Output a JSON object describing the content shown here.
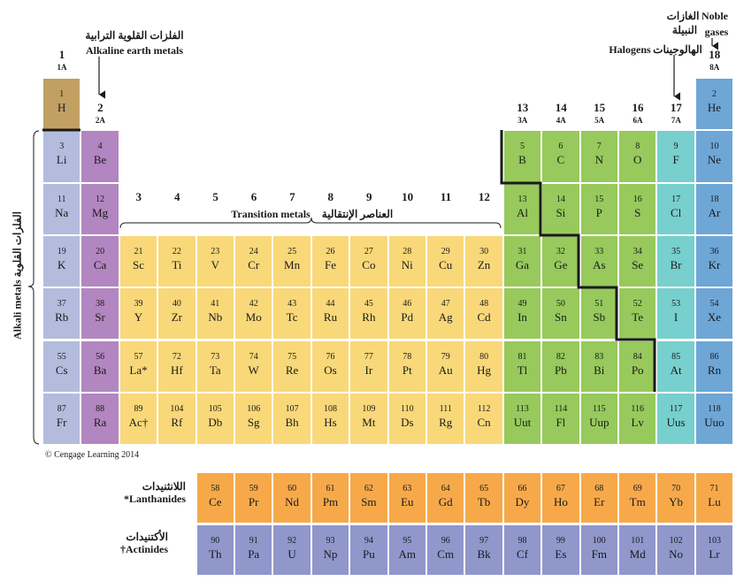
{
  "header": {
    "alkaline_earth_ar": "الفلزات القلوية الترابية",
    "alkaline_earth_en": "Alkaline earth metals",
    "noble_en_1": "Noble",
    "noble_en_2": "gases",
    "noble_ar_1": "الغازات",
    "noble_ar_2": "النبيلة",
    "halogens_en": "Halogens",
    "halogens_ar": "الهالوجينات",
    "transition_en": "Transition metals",
    "transition_ar": "العناصر الإنتقالية",
    "alkali_en": "Alkali metals",
    "alkali_ar": "الفلزات القلوية",
    "lanthanides_ar": "اللانثنيدات",
    "lanthanides_en": "*Lanthanides",
    "actinides_ar": "الأكتنيدات",
    "actinides_en": "†Actinides",
    "copyright": "© Cengage Learning 2014"
  },
  "groups": [
    {
      "col": 1,
      "num": "1",
      "sub": "1A"
    },
    {
      "col": 2,
      "num": "2",
      "sub": "2A"
    },
    {
      "col": 13,
      "num": "13",
      "sub": "3A"
    },
    {
      "col": 14,
      "num": "14",
      "sub": "4A"
    },
    {
      "col": 15,
      "num": "15",
      "sub": "5A"
    },
    {
      "col": 16,
      "num": "16",
      "sub": "6A"
    },
    {
      "col": 17,
      "num": "17",
      "sub": "7A"
    },
    {
      "col": 18,
      "num": "18",
      "sub": "8A"
    }
  ],
  "transition_groups": [
    "3",
    "4",
    "5",
    "6",
    "7",
    "8",
    "9",
    "10",
    "11",
    "12"
  ],
  "colors": {
    "hydrogen": "#c2a063",
    "alkali": "#b3bcdc",
    "alkaline": "#b286c0",
    "transition": "#f9d879",
    "metalloid": "#97c95c",
    "halogen": "#77cfce",
    "noble": "#6ea6d6",
    "lanthanide": "#f7a94a",
    "actinide": "#8f97cb"
  },
  "elements": [
    {
      "n": "1",
      "s": "H",
      "row": 1,
      "col": 1,
      "cat": "hydrogen"
    },
    {
      "n": "2",
      "s": "He",
      "row": 1,
      "col": 18,
      "cat": "noble"
    },
    {
      "n": "3",
      "s": "Li",
      "row": 2,
      "col": 1,
      "cat": "alkali"
    },
    {
      "n": "4",
      "s": "Be",
      "row": 2,
      "col": 2,
      "cat": "alkaline"
    },
    {
      "n": "5",
      "s": "B",
      "row": 2,
      "col": 13,
      "cat": "metalloid"
    },
    {
      "n": "6",
      "s": "C",
      "row": 2,
      "col": 14,
      "cat": "metalloid"
    },
    {
      "n": "7",
      "s": "N",
      "row": 2,
      "col": 15,
      "cat": "metalloid"
    },
    {
      "n": "8",
      "s": "O",
      "row": 2,
      "col": 16,
      "cat": "metalloid"
    },
    {
      "n": "9",
      "s": "F",
      "row": 2,
      "col": 17,
      "cat": "halogen"
    },
    {
      "n": "10",
      "s": "Ne",
      "row": 2,
      "col": 18,
      "cat": "noble"
    },
    {
      "n": "11",
      "s": "Na",
      "row": 3,
      "col": 1,
      "cat": "alkali"
    },
    {
      "n": "12",
      "s": "Mg",
      "row": 3,
      "col": 2,
      "cat": "alkaline"
    },
    {
      "n": "13",
      "s": "Al",
      "row": 3,
      "col": 13,
      "cat": "metalloid"
    },
    {
      "n": "14",
      "s": "Si",
      "row": 3,
      "col": 14,
      "cat": "metalloid"
    },
    {
      "n": "15",
      "s": "P",
      "row": 3,
      "col": 15,
      "cat": "metalloid"
    },
    {
      "n": "16",
      "s": "S",
      "row": 3,
      "col": 16,
      "cat": "metalloid"
    },
    {
      "n": "17",
      "s": "Cl",
      "row": 3,
      "col": 17,
      "cat": "halogen"
    },
    {
      "n": "18",
      "s": "Ar",
      "row": 3,
      "col": 18,
      "cat": "noble"
    },
    {
      "n": "19",
      "s": "K",
      "row": 4,
      "col": 1,
      "cat": "alkali"
    },
    {
      "n": "20",
      "s": "Ca",
      "row": 4,
      "col": 2,
      "cat": "alkaline"
    },
    {
      "n": "21",
      "s": "Sc",
      "row": 4,
      "col": 3,
      "cat": "transition"
    },
    {
      "n": "22",
      "s": "Ti",
      "row": 4,
      "col": 4,
      "cat": "transition"
    },
    {
      "n": "23",
      "s": "V",
      "row": 4,
      "col": 5,
      "cat": "transition"
    },
    {
      "n": "24",
      "s": "Cr",
      "row": 4,
      "col": 6,
      "cat": "transition"
    },
    {
      "n": "25",
      "s": "Mn",
      "row": 4,
      "col": 7,
      "cat": "transition"
    },
    {
      "n": "26",
      "s": "Fe",
      "row": 4,
      "col": 8,
      "cat": "transition"
    },
    {
      "n": "27",
      "s": "Co",
      "row": 4,
      "col": 9,
      "cat": "transition"
    },
    {
      "n": "28",
      "s": "Ni",
      "row": 4,
      "col": 10,
      "cat": "transition"
    },
    {
      "n": "29",
      "s": "Cu",
      "row": 4,
      "col": 11,
      "cat": "transition"
    },
    {
      "n": "30",
      "s": "Zn",
      "row": 4,
      "col": 12,
      "cat": "transition"
    },
    {
      "n": "31",
      "s": "Ga",
      "row": 4,
      "col": 13,
      "cat": "metalloid"
    },
    {
      "n": "32",
      "s": "Ge",
      "row": 4,
      "col": 14,
      "cat": "metalloid"
    },
    {
      "n": "33",
      "s": "As",
      "row": 4,
      "col": 15,
      "cat": "metalloid"
    },
    {
      "n": "34",
      "s": "Se",
      "row": 4,
      "col": 16,
      "cat": "metalloid"
    },
    {
      "n": "35",
      "s": "Br",
      "row": 4,
      "col": 17,
      "cat": "halogen"
    },
    {
      "n": "36",
      "s": "Kr",
      "row": 4,
      "col": 18,
      "cat": "noble"
    },
    {
      "n": "37",
      "s": "Rb",
      "row": 5,
      "col": 1,
      "cat": "alkali"
    },
    {
      "n": "38",
      "s": "Sr",
      "row": 5,
      "col": 2,
      "cat": "alkaline"
    },
    {
      "n": "39",
      "s": "Y",
      "row": 5,
      "col": 3,
      "cat": "transition"
    },
    {
      "n": "40",
      "s": "Zr",
      "row": 5,
      "col": 4,
      "cat": "transition"
    },
    {
      "n": "41",
      "s": "Nb",
      "row": 5,
      "col": 5,
      "cat": "transition"
    },
    {
      "n": "42",
      "s": "Mo",
      "row": 5,
      "col": 6,
      "cat": "transition"
    },
    {
      "n": "43",
      "s": "Tc",
      "row": 5,
      "col": 7,
      "cat": "transition"
    },
    {
      "n": "44",
      "s": "Ru",
      "row": 5,
      "col": 8,
      "cat": "transition"
    },
    {
      "n": "45",
      "s": "Rh",
      "row": 5,
      "col": 9,
      "cat": "transition"
    },
    {
      "n": "46",
      "s": "Pd",
      "row": 5,
      "col": 10,
      "cat": "transition"
    },
    {
      "n": "47",
      "s": "Ag",
      "row": 5,
      "col": 11,
      "cat": "transition"
    },
    {
      "n": "48",
      "s": "Cd",
      "row": 5,
      "col": 12,
      "cat": "transition"
    },
    {
      "n": "49",
      "s": "In",
      "row": 5,
      "col": 13,
      "cat": "metalloid"
    },
    {
      "n": "50",
      "s": "Sn",
      "row": 5,
      "col": 14,
      "cat": "metalloid"
    },
    {
      "n": "51",
      "s": "Sb",
      "row": 5,
      "col": 15,
      "cat": "metalloid"
    },
    {
      "n": "52",
      "s": "Te",
      "row": 5,
      "col": 16,
      "cat": "metalloid"
    },
    {
      "n": "53",
      "s": "I",
      "row": 5,
      "col": 17,
      "cat": "halogen"
    },
    {
      "n": "54",
      "s": "Xe",
      "row": 5,
      "col": 18,
      "cat": "noble"
    },
    {
      "n": "55",
      "s": "Cs",
      "row": 6,
      "col": 1,
      "cat": "alkali"
    },
    {
      "n": "56",
      "s": "Ba",
      "row": 6,
      "col": 2,
      "cat": "alkaline"
    },
    {
      "n": "57",
      "s": "La*",
      "row": 6,
      "col": 3,
      "cat": "transition"
    },
    {
      "n": "72",
      "s": "Hf",
      "row": 6,
      "col": 4,
      "cat": "transition"
    },
    {
      "n": "73",
      "s": "Ta",
      "row": 6,
      "col": 5,
      "cat": "transition"
    },
    {
      "n": "74",
      "s": "W",
      "row": 6,
      "col": 6,
      "cat": "transition"
    },
    {
      "n": "75",
      "s": "Re",
      "row": 6,
      "col": 7,
      "cat": "transition"
    },
    {
      "n": "76",
      "s": "Os",
      "row": 6,
      "col": 8,
      "cat": "transition"
    },
    {
      "n": "77",
      "s": "Ir",
      "row": 6,
      "col": 9,
      "cat": "transition"
    },
    {
      "n": "78",
      "s": "Pt",
      "row": 6,
      "col": 10,
      "cat": "transition"
    },
    {
      "n": "79",
      "s": "Au",
      "row": 6,
      "col": 11,
      "cat": "transition"
    },
    {
      "n": "80",
      "s": "Hg",
      "row": 6,
      "col": 12,
      "cat": "transition"
    },
    {
      "n": "81",
      "s": "Tl",
      "row": 6,
      "col": 13,
      "cat": "metalloid"
    },
    {
      "n": "82",
      "s": "Pb",
      "row": 6,
      "col": 14,
      "cat": "metalloid"
    },
    {
      "n": "83",
      "s": "Bi",
      "row": 6,
      "col": 15,
      "cat": "metalloid"
    },
    {
      "n": "84",
      "s": "Po",
      "row": 6,
      "col": 16,
      "cat": "metalloid"
    },
    {
      "n": "85",
      "s": "At",
      "row": 6,
      "col": 17,
      "cat": "halogen"
    },
    {
      "n": "86",
      "s": "Rn",
      "row": 6,
      "col": 18,
      "cat": "noble"
    },
    {
      "n": "87",
      "s": "Fr",
      "row": 7,
      "col": 1,
      "cat": "alkali"
    },
    {
      "n": "88",
      "s": "Ra",
      "row": 7,
      "col": 2,
      "cat": "alkaline"
    },
    {
      "n": "89",
      "s": "Ac†",
      "row": 7,
      "col": 3,
      "cat": "transition"
    },
    {
      "n": "104",
      "s": "Rf",
      "row": 7,
      "col": 4,
      "cat": "transition"
    },
    {
      "n": "105",
      "s": "Db",
      "row": 7,
      "col": 5,
      "cat": "transition"
    },
    {
      "n": "106",
      "s": "Sg",
      "row": 7,
      "col": 6,
      "cat": "transition"
    },
    {
      "n": "107",
      "s": "Bh",
      "row": 7,
      "col": 7,
      "cat": "transition"
    },
    {
      "n": "108",
      "s": "Hs",
      "row": 7,
      "col": 8,
      "cat": "transition"
    },
    {
      "n": "109",
      "s": "Mt",
      "row": 7,
      "col": 9,
      "cat": "transition"
    },
    {
      "n": "110",
      "s": "Ds",
      "row": 7,
      "col": 10,
      "cat": "transition"
    },
    {
      "n": "111",
      "s": "Rg",
      "row": 7,
      "col": 11,
      "cat": "transition"
    },
    {
      "n": "112",
      "s": "Cn",
      "row": 7,
      "col": 12,
      "cat": "transition"
    },
    {
      "n": "113",
      "s": "Uut",
      "row": 7,
      "col": 13,
      "cat": "metalloid"
    },
    {
      "n": "114",
      "s": "Fl",
      "row": 7,
      "col": 14,
      "cat": "metalloid"
    },
    {
      "n": "115",
      "s": "Uup",
      "row": 7,
      "col": 15,
      "cat": "metalloid"
    },
    {
      "n": "116",
      "s": "Lv",
      "row": 7,
      "col": 16,
      "cat": "metalloid"
    },
    {
      "n": "117",
      "s": "Uus",
      "row": 7,
      "col": 17,
      "cat": "halogen"
    },
    {
      "n": "118",
      "s": "Uuo",
      "row": 7,
      "col": 18,
      "cat": "noble"
    },
    {
      "n": "58",
      "s": "Ce",
      "row": 8,
      "col": 5,
      "cat": "lanthanide"
    },
    {
      "n": "59",
      "s": "Pr",
      "row": 8,
      "col": 6,
      "cat": "lanthanide"
    },
    {
      "n": "60",
      "s": "Nd",
      "row": 8,
      "col": 7,
      "cat": "lanthanide"
    },
    {
      "n": "61",
      "s": "Pm",
      "row": 8,
      "col": 8,
      "cat": "lanthanide"
    },
    {
      "n": "62",
      "s": "Sm",
      "row": 8,
      "col": 9,
      "cat": "lanthanide"
    },
    {
      "n": "63",
      "s": "Eu",
      "row": 8,
      "col": 10,
      "cat": "lanthanide"
    },
    {
      "n": "64",
      "s": "Gd",
      "row": 8,
      "col": 11,
      "cat": "lanthanide"
    },
    {
      "n": "65",
      "s": "Tb",
      "row": 8,
      "col": 12,
      "cat": "lanthanide"
    },
    {
      "n": "66",
      "s": "Dy",
      "row": 8,
      "col": 13,
      "cat": "lanthanide"
    },
    {
      "n": "67",
      "s": "Ho",
      "row": 8,
      "col": 14,
      "cat": "lanthanide"
    },
    {
      "n": "68",
      "s": "Er",
      "row": 8,
      "col": 15,
      "cat": "lanthanide"
    },
    {
      "n": "69",
      "s": "Tm",
      "row": 8,
      "col": 16,
      "cat": "lanthanide"
    },
    {
      "n": "70",
      "s": "Yb",
      "row": 8,
      "col": 17,
      "cat": "lanthanide"
    },
    {
      "n": "71",
      "s": "Lu",
      "row": 8,
      "col": 18,
      "cat": "lanthanide"
    },
    {
      "n": "90",
      "s": "Th",
      "row": 9,
      "col": 5,
      "cat": "actinide"
    },
    {
      "n": "91",
      "s": "Pa",
      "row": 9,
      "col": 6,
      "cat": "actinide"
    },
    {
      "n": "92",
      "s": "U",
      "row": 9,
      "col": 7,
      "cat": "actinide"
    },
    {
      "n": "93",
      "s": "Np",
      "row": 9,
      "col": 8,
      "cat": "actinide"
    },
    {
      "n": "94",
      "s": "Pu",
      "row": 9,
      "col": 9,
      "cat": "actinide"
    },
    {
      "n": "95",
      "s": "Am",
      "row": 9,
      "col": 10,
      "cat": "actinide"
    },
    {
      "n": "96",
      "s": "Cm",
      "row": 9,
      "col": 11,
      "cat": "actinide"
    },
    {
      "n": "97",
      "s": "Bk",
      "row": 9,
      "col": 12,
      "cat": "actinide"
    },
    {
      "n": "98",
      "s": "Cf",
      "row": 9,
      "col": 13,
      "cat": "actinide"
    },
    {
      "n": "99",
      "s": "Es",
      "row": 9,
      "col": 14,
      "cat": "actinide"
    },
    {
      "n": "100",
      "s": "Fm",
      "row": 9,
      "col": 15,
      "cat": "actinide"
    },
    {
      "n": "101",
      "s": "Md",
      "row": 9,
      "col": 16,
      "cat": "actinide"
    },
    {
      "n": "102",
      "s": "No",
      "row": 9,
      "col": 17,
      "cat": "actinide"
    },
    {
      "n": "103",
      "s": "Lr",
      "row": 9,
      "col": 18,
      "cat": "actinide"
    }
  ]
}
